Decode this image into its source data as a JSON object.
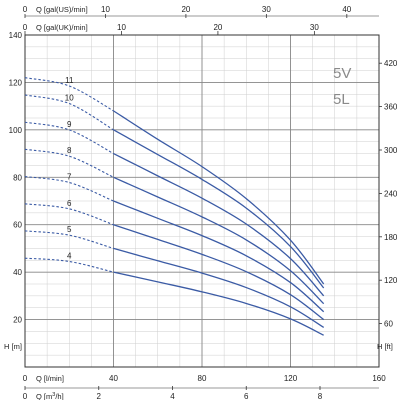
{
  "chart_data": {
    "type": "line",
    "title": "",
    "models": [
      "5V",
      "5L"
    ],
    "x_axes": {
      "q_us": {
        "label": "Q [gal(US)/min]",
        "ticks": [
          "0",
          "10",
          "20",
          "30",
          "40"
        ],
        "lim": [
          0,
          44
        ]
      },
      "q_uk": {
        "label": "Q [gal(UK)/min]",
        "ticks": [
          "0",
          "10",
          "20",
          "30"
        ],
        "lim": [
          0,
          36.7
        ]
      },
      "q_lmin": {
        "label": "Q [l/min]",
        "ticks": [
          "0",
          "40",
          "80",
          "120",
          "160"
        ],
        "lim": [
          0,
          160
        ]
      },
      "q_m3h": {
        "label": "Q [m³/h]",
        "label_parts": [
          "Q [m",
          "3",
          "/h]"
        ],
        "ticks": [
          "0",
          "2",
          "4",
          "6",
          "8"
        ],
        "lim": [
          0,
          9.6
        ]
      }
    },
    "y_axes": {
      "h_m": {
        "label": "H [m]",
        "ticks": [
          "20",
          "40",
          "60",
          "80",
          "100",
          "120",
          "140"
        ],
        "lim": [
          0,
          140
        ]
      },
      "h_ft": {
        "label": "H [ft]",
        "ticks": [
          "60",
          "120",
          "180",
          "240",
          "300",
          "360",
          "420"
        ],
        "lim": [
          0,
          459
        ]
      }
    },
    "grid": true,
    "series": [
      {
        "name": "4",
        "x": [
          0,
          20,
          40,
          60,
          80,
          100,
          120,
          135
        ],
        "y": [
          45.9,
          44.5,
          40.0,
          35.9,
          31.7,
          26.8,
          20.3,
          13.4
        ]
      },
      {
        "name": "5",
        "x": [
          0,
          20,
          40,
          60,
          80,
          100,
          120,
          135
        ],
        "y": [
          57.4,
          55.6,
          50.0,
          44.8,
          39.6,
          33.5,
          25.4,
          16.7
        ]
      },
      {
        "name": "6",
        "x": [
          0,
          20,
          40,
          60,
          80,
          100,
          120,
          135
        ],
        "y": [
          68.8,
          66.7,
          60.0,
          53.8,
          47.5,
          40.2,
          30.5,
          20.0
        ]
      },
      {
        "name": "7",
        "x": [
          0,
          20,
          40,
          60,
          80,
          100,
          120,
          135
        ],
        "y": [
          80.3,
          77.8,
          70.0,
          62.7,
          55.4,
          46.9,
          35.6,
          23.3
        ]
      },
      {
        "name": "8",
        "x": [
          0,
          20,
          40,
          60,
          80,
          100,
          120,
          135
        ],
        "y": [
          91.8,
          88.9,
          80.0,
          71.7,
          63.3,
          53.6,
          40.6,
          26.7
        ]
      },
      {
        "name": "9",
        "x": [
          0,
          20,
          40,
          60,
          80,
          100,
          120,
          135
        ],
        "y": [
          103.2,
          100.0,
          90.0,
          80.6,
          71.2,
          60.3,
          45.7,
          30.0
        ]
      },
      {
        "name": "10",
        "x": [
          0,
          20,
          40,
          60,
          80,
          100,
          120,
          135
        ],
        "y": [
          114.7,
          111.1,
          100.0,
          89.6,
          79.1,
          67.0,
          50.8,
          33.3
        ]
      },
      {
        "name": "11",
        "x": [
          0,
          20,
          40,
          60,
          80,
          100,
          120,
          135
        ],
        "y": [
          122.0,
          118.5,
          108.0,
          96.0,
          84.5,
          71.0,
          53.5,
          35.0
        ]
      }
    ],
    "dashed_segment_x": [
      0,
      40
    ],
    "colors": {
      "curve": "#3b5ba5",
      "grid_major": "#888888",
      "grid_minor": "#cfcfcf",
      "axis": "#333333"
    }
  }
}
